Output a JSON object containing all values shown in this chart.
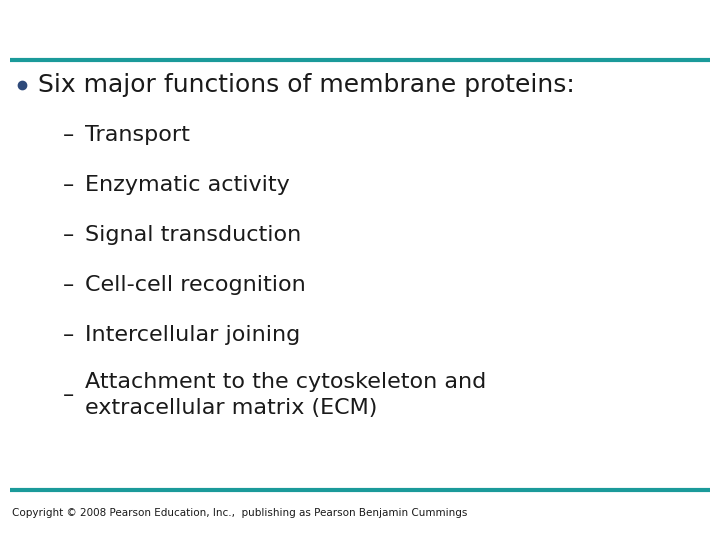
{
  "background_color": "#ffffff",
  "line_color": "#1a9a9a",
  "bullet_color": "#2e4a7a",
  "text_color": "#1a1a1a",
  "bullet_main": "Six major functions of membrane proteins:",
  "sub_items": [
    "Transport",
    "Enzymatic activity",
    "Signal transduction",
    "Cell-cell recognition",
    "Intercellular joining",
    "Attachment to the cytoskeleton and\nextracellular matrix (ECM)"
  ],
  "copyright": "Copyright © 2008 Pearson Education, Inc.,  publishing as Pearson Benjamin Cummings",
  "main_fontsize": 18,
  "sub_fontsize": 16,
  "copyright_fontsize": 7.5,
  "line_thickness": 3.0
}
